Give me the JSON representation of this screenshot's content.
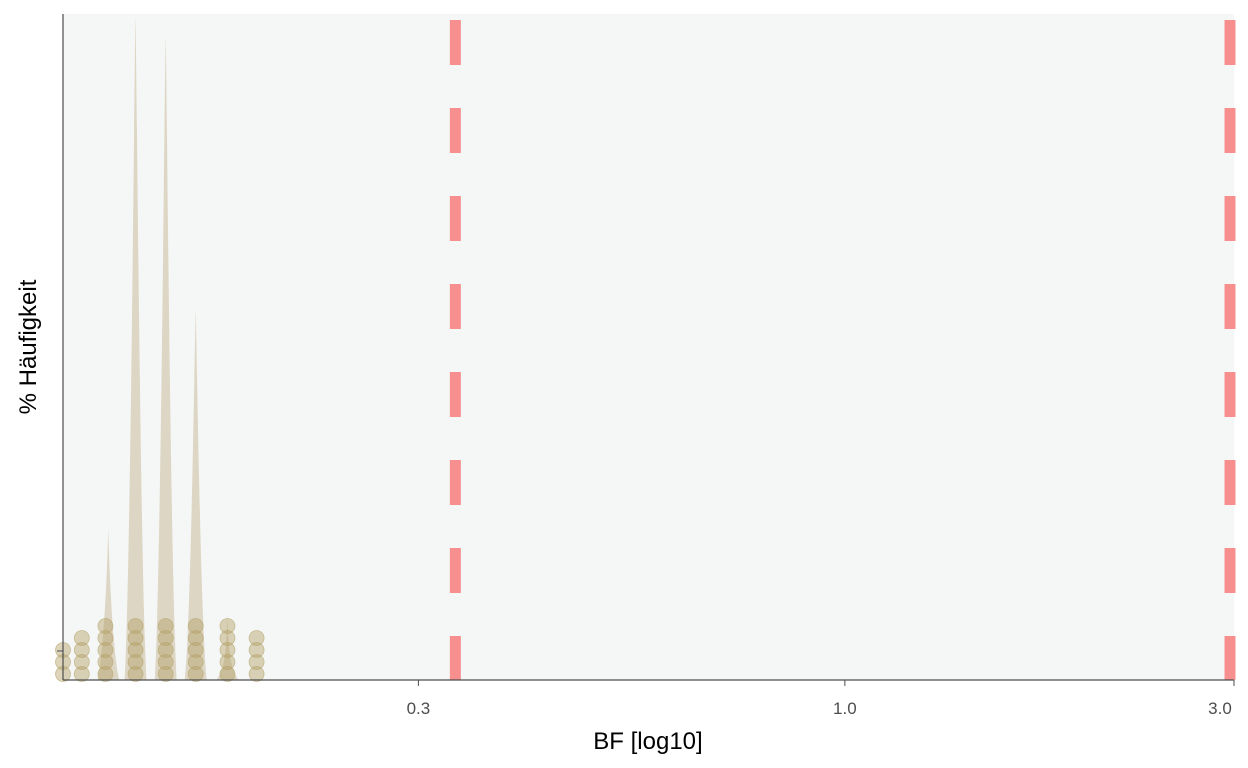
{
  "chart_data": {
    "type": "violin",
    "title": "",
    "xlabel": "BF [log10]",
    "ylabel": "% Häufigkeit",
    "x_scale": "log10",
    "xlim": [
      0.11,
      3.0
    ],
    "x_ticks": [
      {
        "value": 0.3,
        "label": "0.3"
      },
      {
        "value": 1.0,
        "label": "1.0"
      },
      {
        "value": 3.0,
        "label": "3.0"
      }
    ],
    "y_ticks": [],
    "grid": false,
    "legend": "none",
    "reference_lines": [
      {
        "x": 0.333,
        "style": "dashed",
        "color": "#f78f8f"
      },
      {
        "x": 3.0,
        "style": "dashed",
        "color": "#f78f8f"
      }
    ],
    "distribution_peaks": [
      {
        "x": 0.125,
        "relative_height": 0.23
      },
      {
        "x": 0.135,
        "relative_height": 1.0
      },
      {
        "x": 0.147,
        "relative_height": 0.97
      },
      {
        "x": 0.16,
        "relative_height": 0.56
      },
      {
        "x": 0.175,
        "relative_height": 0.1
      }
    ],
    "point_columns": [
      {
        "x": 0.11,
        "count": 3
      },
      {
        "x": 0.116,
        "count": 4
      },
      {
        "x": 0.124,
        "count": 5
      },
      {
        "x": 0.135,
        "count": 5
      },
      {
        "x": 0.147,
        "count": 5
      },
      {
        "x": 0.16,
        "count": 5
      },
      {
        "x": 0.175,
        "count": 5
      },
      {
        "x": 0.19,
        "count": 4
      }
    ],
    "colors": {
      "panel_background": "#f5f7f6",
      "distribution_fill": "#ddd6c4",
      "points": "#b3a066",
      "reference_line": "#f78f8f",
      "axis": "#4d4d4d"
    }
  }
}
